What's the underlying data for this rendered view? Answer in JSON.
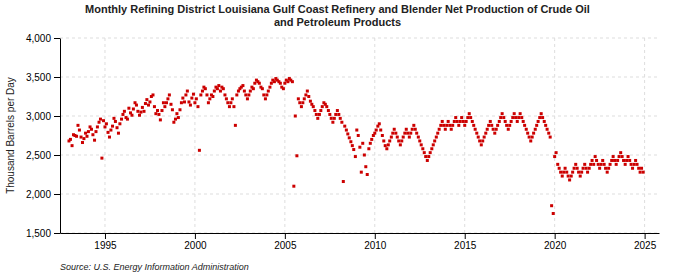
{
  "chart_data": {
    "type": "scatter",
    "title": "Monthly Refining District Louisiana Gulf Coast Refinery and Blender Net Production of Crude Oil\nand Petroleum Products",
    "y_label": "Thousand Barrels per Day",
    "annotations": [
      "Source: U.S. Energy Information Administration"
    ],
    "color": "#CC0000",
    "marker": "square",
    "grid": true,
    "xlim": [
      1992.5,
      2025.8
    ],
    "ylim": [
      1500,
      4000
    ],
    "xticks": [
      1995,
      2000,
      2005,
      2010,
      2015,
      2020,
      2025
    ],
    "yticks": [
      {
        "value": 1500,
        "label": "1,500"
      },
      {
        "value": 2000,
        "label": "2,000"
      },
      {
        "value": 2500,
        "label": "2,500"
      },
      {
        "value": 3000,
        "label": "3,000"
      },
      {
        "value": 3500,
        "label": "3,500"
      },
      {
        "value": 4000,
        "label": "4,000"
      }
    ],
    "x": [
      1993.0,
      1993.08,
      1993.17,
      1993.25,
      1993.33,
      1993.42,
      1993.5,
      1993.58,
      1993.67,
      1993.75,
      1993.83,
      1993.92,
      1994.0,
      1994.08,
      1994.17,
      1994.25,
      1994.33,
      1994.42,
      1994.5,
      1994.58,
      1994.67,
      1994.75,
      1994.83,
      1994.92,
      1995.0,
      1995.08,
      1995.17,
      1995.25,
      1995.33,
      1995.42,
      1995.5,
      1995.58,
      1995.67,
      1995.75,
      1995.83,
      1995.92,
      1996.0,
      1996.08,
      1996.17,
      1996.25,
      1996.33,
      1996.42,
      1996.5,
      1996.58,
      1996.67,
      1996.75,
      1996.83,
      1996.92,
      1997.0,
      1997.08,
      1997.17,
      1997.25,
      1997.33,
      1997.42,
      1997.5,
      1997.58,
      1997.67,
      1997.75,
      1997.83,
      1997.92,
      1998.0,
      1998.08,
      1998.17,
      1998.25,
      1998.33,
      1998.42,
      1998.5,
      1998.58,
      1998.67,
      1998.75,
      1998.83,
      1998.92,
      1999.0,
      1999.08,
      1999.17,
      1999.25,
      1999.33,
      1999.42,
      1999.5,
      1999.58,
      1999.67,
      1999.75,
      1999.83,
      1999.92,
      2000.0,
      2000.08,
      2000.17,
      2000.25,
      2000.33,
      2000.42,
      2000.5,
      2000.58,
      2000.67,
      2000.75,
      2000.83,
      2000.92,
      2001.0,
      2001.08,
      2001.17,
      2001.25,
      2001.33,
      2001.42,
      2001.5,
      2001.58,
      2001.67,
      2001.75,
      2001.83,
      2001.92,
      2002.0,
      2002.08,
      2002.17,
      2002.25,
      2002.33,
      2002.42,
      2002.5,
      2002.58,
      2002.67,
      2002.75,
      2002.83,
      2002.92,
      2003.0,
      2003.08,
      2003.17,
      2003.25,
      2003.33,
      2003.42,
      2003.5,
      2003.58,
      2003.67,
      2003.75,
      2003.83,
      2003.92,
      2004.0,
      2004.08,
      2004.17,
      2004.25,
      2004.33,
      2004.42,
      2004.5,
      2004.58,
      2004.67,
      2004.75,
      2004.83,
      2004.92,
      2005.0,
      2005.08,
      2005.17,
      2005.25,
      2005.33,
      2005.42,
      2005.5,
      2005.58,
      2005.67,
      2005.75,
      2005.83,
      2005.92,
      2006.0,
      2006.08,
      2006.17,
      2006.25,
      2006.33,
      2006.42,
      2006.5,
      2006.58,
      2006.67,
      2006.75,
      2006.83,
      2006.92,
      2007.0,
      2007.08,
      2007.17,
      2007.25,
      2007.33,
      2007.42,
      2007.5,
      2007.58,
      2007.67,
      2007.75,
      2007.83,
      2007.92,
      2008.0,
      2008.08,
      2008.17,
      2008.25,
      2008.33,
      2008.42,
      2008.5,
      2008.58,
      2008.67,
      2008.75,
      2008.83,
      2008.92,
      2009.0,
      2009.08,
      2009.17,
      2009.25,
      2009.33,
      2009.42,
      2009.5,
      2009.58,
      2009.67,
      2009.75,
      2009.83,
      2009.92,
      2010.0,
      2010.08,
      2010.17,
      2010.25,
      2010.33,
      2010.42,
      2010.5,
      2010.58,
      2010.67,
      2010.75,
      2010.83,
      2010.92,
      2011.0,
      2011.08,
      2011.17,
      2011.25,
      2011.33,
      2011.42,
      2011.5,
      2011.58,
      2011.67,
      2011.75,
      2011.83,
      2011.92,
      2012.0,
      2012.08,
      2012.17,
      2012.25,
      2012.33,
      2012.42,
      2012.5,
      2012.58,
      2012.67,
      2012.75,
      2012.83,
      2012.92,
      2013.0,
      2013.08,
      2013.17,
      2013.25,
      2013.33,
      2013.42,
      2013.5,
      2013.58,
      2013.67,
      2013.75,
      2013.83,
      2013.92,
      2014.0,
      2014.08,
      2014.17,
      2014.25,
      2014.33,
      2014.42,
      2014.5,
      2014.58,
      2014.67,
      2014.75,
      2014.83,
      2014.92,
      2015.0,
      2015.08,
      2015.17,
      2015.25,
      2015.33,
      2015.42,
      2015.5,
      2015.58,
      2015.67,
      2015.75,
      2015.83,
      2015.92,
      2016.0,
      2016.08,
      2016.17,
      2016.25,
      2016.33,
      2016.42,
      2016.5,
      2016.58,
      2016.67,
      2016.75,
      2016.83,
      2016.92,
      2017.0,
      2017.08,
      2017.17,
      2017.25,
      2017.33,
      2017.42,
      2017.5,
      2017.58,
      2017.67,
      2017.75,
      2017.83,
      2017.92,
      2018.0,
      2018.08,
      2018.17,
      2018.25,
      2018.33,
      2018.42,
      2018.5,
      2018.58,
      2018.67,
      2018.75,
      2018.83,
      2018.92,
      2019.0,
      2019.08,
      2019.17,
      2019.25,
      2019.33,
      2019.42,
      2019.5,
      2019.58,
      2019.67,
      2019.75,
      2019.83,
      2019.92,
      2020.0,
      2020.08,
      2020.17,
      2020.25,
      2020.33,
      2020.42,
      2020.5,
      2020.58,
      2020.67,
      2020.75,
      2020.83,
      2020.92,
      2021.0,
      2021.08,
      2021.17,
      2021.25,
      2021.33,
      2021.42,
      2021.5,
      2021.58,
      2021.67,
      2021.75,
      2021.83,
      2021.92,
      2022.0,
      2022.08,
      2022.17,
      2022.25,
      2022.33,
      2022.42,
      2022.5,
      2022.58,
      2022.67,
      2022.75,
      2022.83,
      2022.92,
      2023.0,
      2023.08,
      2023.17,
      2023.25,
      2023.33,
      2023.42,
      2023.5,
      2023.58,
      2023.67,
      2023.75,
      2023.83,
      2023.92,
      2024.0,
      2024.08,
      2024.17,
      2024.25,
      2024.33,
      2024.42,
      2024.5,
      2024.58,
      2024.67,
      2024.75,
      2024.83,
      2024.92
    ],
    "values": [
      2680,
      2700,
      2620,
      2760,
      2750,
      2740,
      2880,
      2820,
      2730,
      2660,
      2710,
      2780,
      2740,
      2800,
      2860,
      2830,
      2760,
      2690,
      2800,
      2860,
      2920,
      2960,
      2460,
      2940,
      2860,
      2900,
      2790,
      2730,
      2820,
      2870,
      2970,
      2930,
      2850,
      2780,
      2900,
      2960,
      3020,
      3060,
      2980,
      2960,
      3100,
      3040,
      3010,
      3090,
      3170,
      3140,
      3060,
      3010,
      3050,
      3110,
      3060,
      3160,
      3210,
      3140,
      3180,
      3250,
      3270,
      3120,
      3030,
      3070,
      3020,
      2950,
      3070,
      3170,
      3120,
      3170,
      3220,
      3270,
      3150,
      3080,
      2920,
      2960,
      3030,
      2980,
      3080,
      3170,
      3230,
      3180,
      3270,
      3320,
      3180,
      3140,
      3230,
      3280,
      3170,
      3220,
      3120,
      2560,
      3270,
      3320,
      3370,
      3350,
      3270,
      3170,
      3220,
      3270,
      3250,
      3320,
      3370,
      3350,
      3390,
      3320,
      3370,
      3350,
      3270,
      3220,
      3170,
      3120,
      3170,
      3220,
      3120,
      2880,
      3270,
      3320,
      3350,
      3370,
      3390,
      3320,
      3270,
      3220,
      3270,
      3320,
      3370,
      3350,
      3420,
      3460,
      3440,
      3420,
      3370,
      3350,
      3270,
      3220,
      3270,
      3320,
      3370,
      3420,
      3460,
      3440,
      3480,
      3460,
      3440,
      3420,
      3370,
      3350,
      3420,
      3460,
      3440,
      3480,
      3460,
      3440,
      2100,
      3000,
      2490,
      3220,
      3170,
      3120,
      3170,
      3220,
      3270,
      3320,
      3250,
      3190,
      3150,
      3120,
      3070,
      3020,
      2970,
      3020,
      3070,
      3120,
      3170,
      3150,
      3120,
      3070,
      3020,
      2970,
      2920,
      2970,
      3020,
      3070,
      3020,
      2970,
      2920,
      2160,
      2870,
      2820,
      2770,
      2720,
      2670,
      2620,
      2570,
      2480,
      2820,
      2750,
      2600,
      2280,
      2650,
      2500,
      2350,
      2250,
      2580,
      2650,
      2700,
      2750,
      2780,
      2820,
      2870,
      2900,
      2820,
      2750,
      2680,
      2620,
      2580,
      2630,
      2680,
      2730,
      2780,
      2830,
      2780,
      2730,
      2680,
      2630,
      2680,
      2730,
      2780,
      2830,
      2780,
      2730,
      2780,
      2830,
      2880,
      2830,
      2780,
      2730,
      2680,
      2630,
      2580,
      2530,
      2480,
      2430,
      2480,
      2530,
      2580,
      2630,
      2680,
      2730,
      2780,
      2830,
      2880,
      2930,
      2880,
      2830,
      2880,
      2930,
      2880,
      2830,
      2880,
      2930,
      2980,
      2930,
      2880,
      2930,
      2980,
      2930,
      2880,
      2930,
      2980,
      3030,
      2980,
      2930,
      2880,
      2830,
      2780,
      2730,
      2680,
      2630,
      2680,
      2730,
      2780,
      2830,
      2880,
      2930,
      2880,
      2830,
      2780,
      2830,
      2880,
      2930,
      2980,
      3030,
      2980,
      2930,
      2880,
      2830,
      2880,
      2930,
      2980,
      3030,
      2980,
      2930,
      2980,
      3030,
      2980,
      2930,
      2880,
      2830,
      2780,
      2730,
      2680,
      2730,
      2780,
      2830,
      2880,
      2930,
      2980,
      3030,
      2980,
      2930,
      2880,
      2830,
      2780,
      2730,
      1850,
      1750,
      2480,
      2530,
      2380,
      2330,
      2280,
      2230,
      2280,
      2330,
      2280,
      2230,
      2180,
      2230,
      2280,
      2330,
      2380,
      2330,
      2280,
      2230,
      2280,
      2330,
      2380,
      2330,
      2280,
      2330,
      2380,
      2430,
      2380,
      2480,
      2430,
      2380,
      2330,
      2380,
      2430,
      2380,
      2330,
      2280,
      2330,
      2380,
      2430,
      2480,
      2430,
      2380,
      2430,
      2480,
      2530,
      2480,
      2430,
      2380,
      2430,
      2480,
      2430,
      2380,
      2330,
      2380,
      2430,
      2380,
      2330,
      2280,
      2330,
      2280
    ]
  }
}
